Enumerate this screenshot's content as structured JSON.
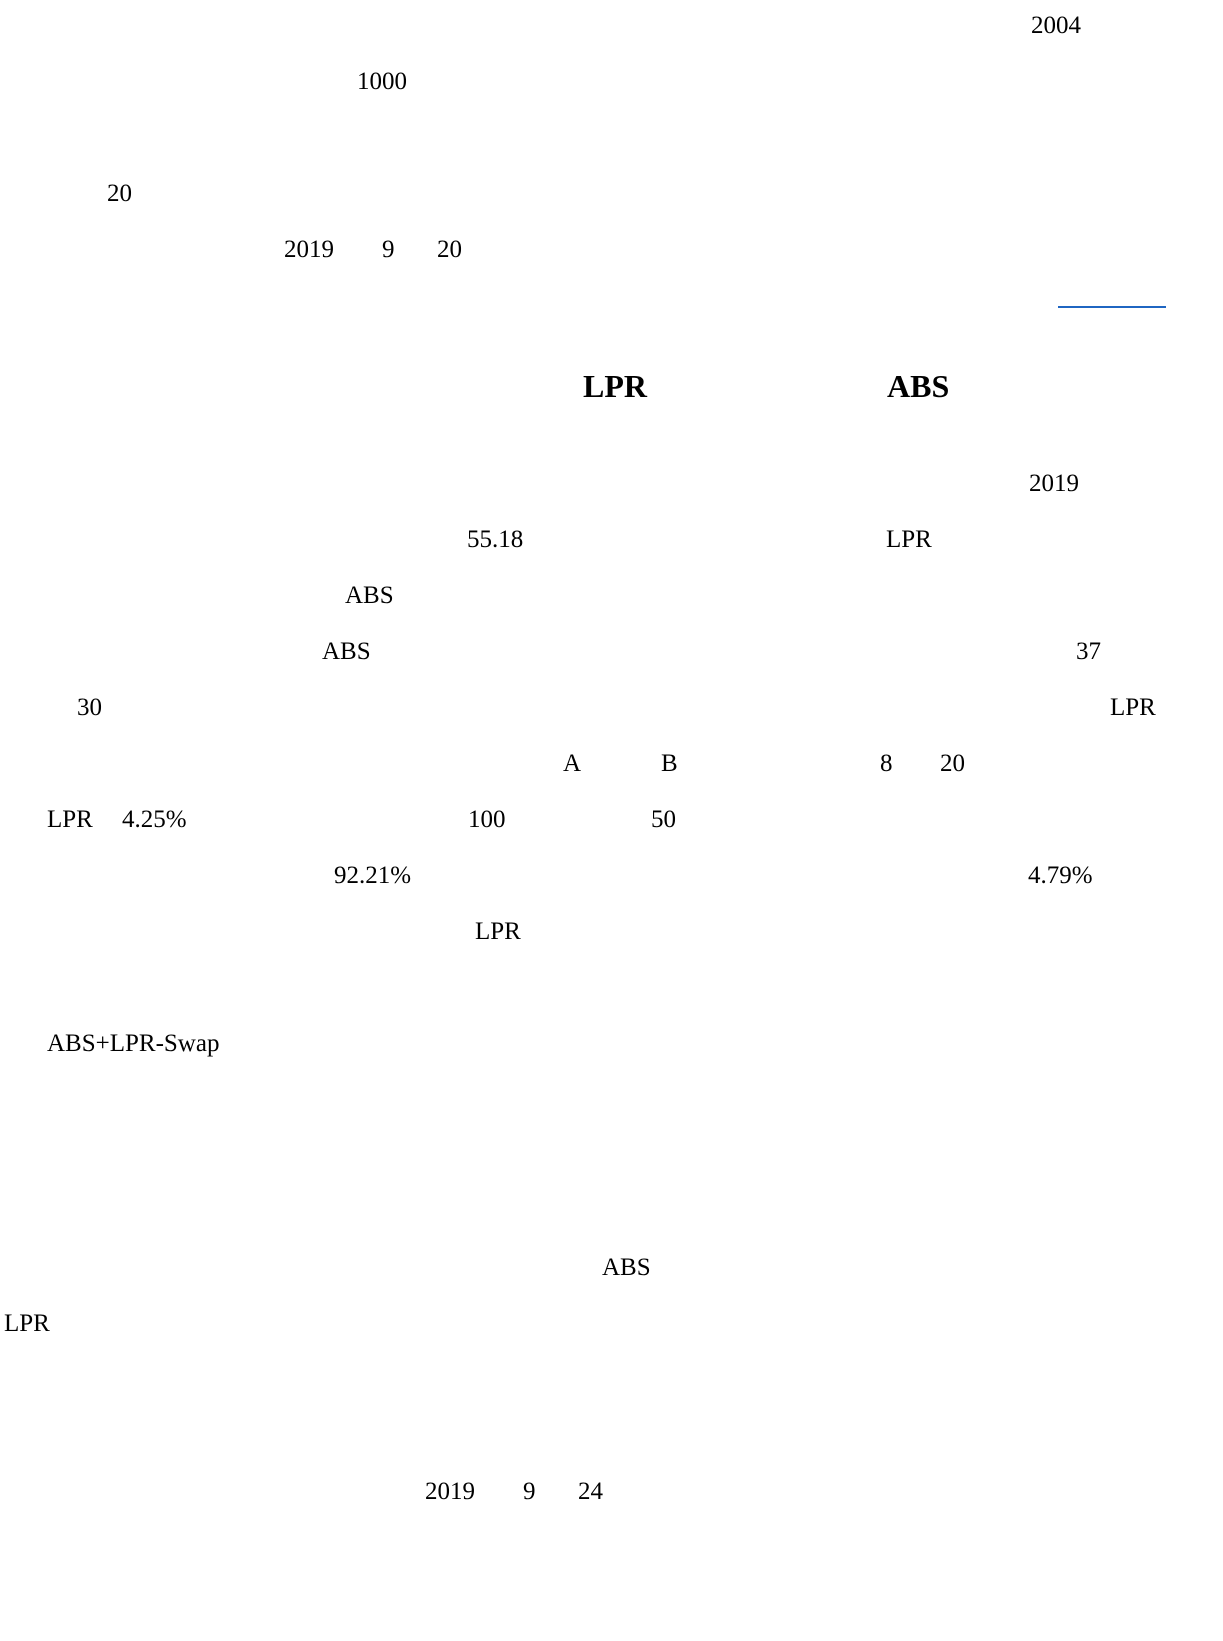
{
  "fragments": {
    "f_2004": "2004",
    "f_1000": "1000",
    "f_20a": "20",
    "f_2019a": "2019",
    "f_9a": "9",
    "f_20b": "20",
    "h_lpr": "LPR",
    "h_abs": "ABS",
    "f_2019b": "2019",
    "f_5518": "55.18",
    "f_lpr1": "LPR",
    "f_abs1": "ABS",
    "f_abs2": "ABS",
    "f_37": "37",
    "f_30": "30",
    "f_lpr2": "LPR",
    "f_a": "A",
    "f_b": "B",
    "f_8": "8",
    "f_20c": "20",
    "f_lpr3": "LPR",
    "f_425": "4.25%",
    "f_100": "100",
    "f_50": "50",
    "f_9221": "92.21%",
    "f_479": "4.79%",
    "f_lpr4": "LPR",
    "f_swap": "ABS+LPR-Swap",
    "f_abs3": "ABS",
    "f_lpr5": "LPR",
    "f_2019c": "2019",
    "f_9b": "9",
    "f_24": "24"
  },
  "colors": {
    "text": "#000000",
    "link_rule": "#1f66c2",
    "background": "#ffffff"
  }
}
